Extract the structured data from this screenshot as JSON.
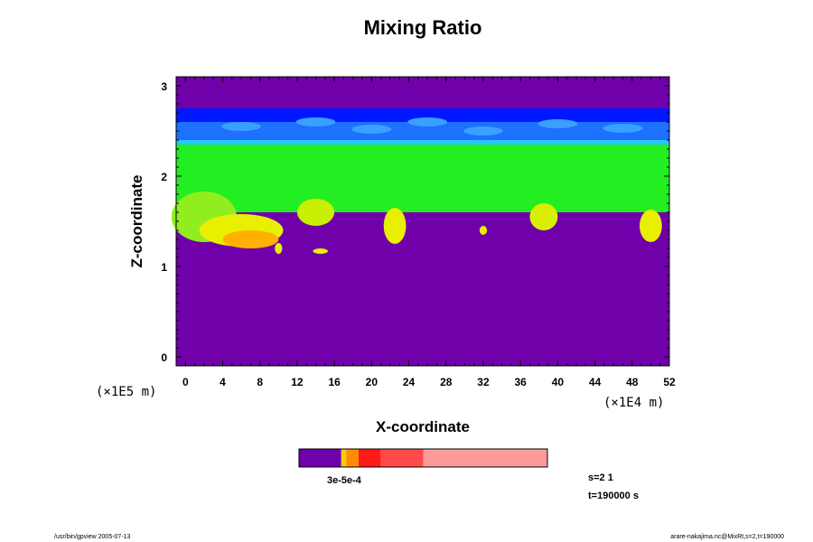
{
  "chart_data": {
    "type": "heatmap",
    "title": "Mixing Ratio",
    "xlabel": "X-coordinate",
    "ylabel": "Z-coordinate",
    "x_scale_label": "(×1E4 m)",
    "y_scale_label": "(×1E5 m)",
    "x_ticks": [
      "0",
      "4",
      "8",
      "12",
      "16",
      "20",
      "24",
      "28",
      "32",
      "36",
      "40",
      "44",
      "48",
      "52"
    ],
    "y_ticks": [
      "0",
      "1",
      "2",
      "3"
    ],
    "xlim": [
      -1,
      52
    ],
    "ylim": [
      -0.1,
      3.1
    ],
    "colorbar": {
      "colors": [
        "#7000aa",
        "#f0d000",
        "#ff8c00",
        "#ff1a1a",
        "#ff4a4a",
        "#ff9a9a"
      ],
      "fractions": [
        0.17,
        0.02,
        0.05,
        0.09,
        0.17,
        0.5
      ],
      "label": "3e-5e-4"
    },
    "layers": [
      {
        "name": "top",
        "z_from": 2.75,
        "z_to": 3.1,
        "color": "#7000aa"
      },
      {
        "name": "upper-dark",
        "z_from": 2.6,
        "z_to": 2.75,
        "color": "#0018ff"
      },
      {
        "name": "upper-blue",
        "z_from": 2.4,
        "z_to": 2.6,
        "color": "#1e70ff"
      },
      {
        "name": "band",
        "z_from": 2.35,
        "z_to": 2.4,
        "color": "#28c8ff"
      },
      {
        "name": "green",
        "z_from": 1.6,
        "z_to": 2.35,
        "color": "#22ee22"
      },
      {
        "name": "bottom",
        "z_from": -0.1,
        "z_to": 1.6,
        "color": "#7000aa"
      }
    ]
  },
  "info": {
    "s": "s=2 1",
    "t": "t=190000 s"
  },
  "footer": {
    "left": "/usr/bin/gpview 2005-07-13",
    "right": "arare-nakajima.nc@MixRt,s=2,t=190000"
  }
}
